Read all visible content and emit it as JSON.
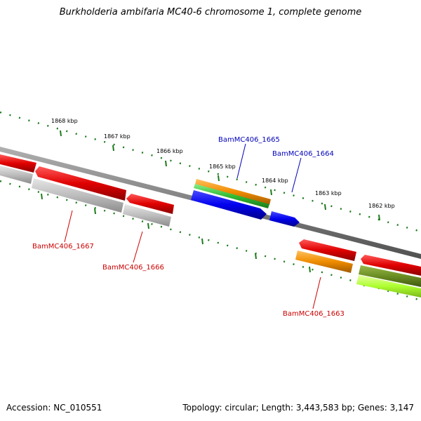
{
  "title": "Burkholderia ambifaria MC40-6 chromosome 1, complete genome",
  "accession": "Accession: NC_010551",
  "summary": "Topology: circular; Length: 3,443,583 bp; Genes: 3,147",
  "colors": {
    "backbone": "#808080",
    "tick": "#1a7a1a",
    "forward_label": "#0000bb",
    "reverse_label": "#cc0000",
    "red": "#e00000",
    "blue": "#0000ee",
    "orange": "#f08c00",
    "green": "#33bb33",
    "gray": "#bdbdbd",
    "olive": "#6b8e23",
    "lime": "#adff2f"
  },
  "kbp_labels": [
    "1868 kbp",
    "1867 kbp",
    "1866 kbp",
    "1865 kbp",
    "1864 kbp",
    "1863 kbp",
    "1862 kbp"
  ],
  "gene_labels": {
    "g1665": "BamMC406_1665",
    "g1664": "BamMC406_1664",
    "g1667": "BamMC406_1667",
    "g1666": "BamMC406_1666",
    "g1663": "BamMC406_1663"
  }
}
